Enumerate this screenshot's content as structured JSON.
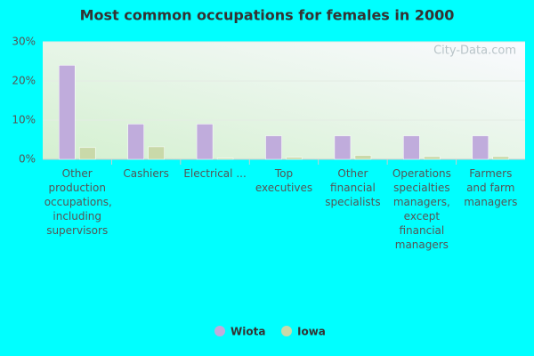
{
  "chart_data": {
    "type": "bar",
    "title": "Most common occupations for females in 2000",
    "watermark": "City-Data.com",
    "categories": [
      "Other production occupations, including supervisors",
      "Cashiers",
      "Electrical ...",
      "Top executives",
      "Other financial specialists",
      "Operations specialties managers, except financial managers",
      "Farmers and farm managers"
    ],
    "series": [
      {
        "name": "Wiota",
        "color": "#c0acdc",
        "values": [
          24,
          9,
          9,
          6,
          6,
          6,
          6
        ]
      },
      {
        "name": "Iowa",
        "color": "#c9d9a9",
        "values": [
          3,
          3.2,
          0.3,
          0.5,
          1,
          0.7,
          0.7
        ]
      }
    ],
    "ylim": [
      0,
      30
    ],
    "yticks": [
      {
        "value": 0,
        "label": "0%"
      },
      {
        "value": 10,
        "label": "10%"
      },
      {
        "value": 20,
        "label": "20%"
      },
      {
        "value": 30,
        "label": "30%"
      }
    ],
    "grid": true
  }
}
